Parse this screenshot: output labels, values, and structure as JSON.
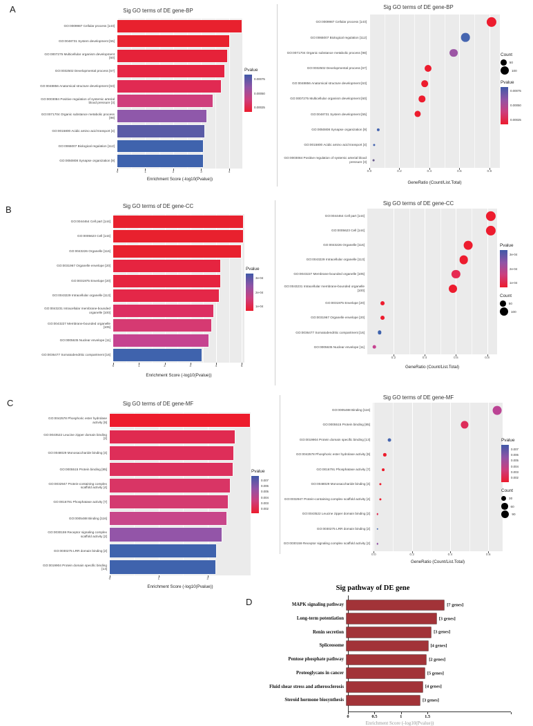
{
  "panel_letters": [
    "A",
    "B",
    "C",
    "D"
  ],
  "pvalue_gradient": [
    "#4059A7",
    "#8F54A6",
    "#CC3F7D",
    "#EC1C2E"
  ],
  "panel_bg": "#EBEBEB",
  "chart_data": [
    {
      "id": "bp-bar",
      "type": "bar",
      "panel": "A",
      "title": "Sig GO terms of DE gene-BP",
      "xlabel": "Enrichment Score (-log10(Pvalue))",
      "xmin": 0,
      "xmax": 4.47,
      "ticks": [
        {
          "v": 0,
          "label": "0"
        },
        {
          "v": 1,
          "label": "1"
        },
        {
          "v": 2,
          "label": "2"
        },
        {
          "v": 3,
          "label": "3"
        },
        {
          "v": 4,
          "label": "4"
        }
      ],
      "legend_order": [
        "pvalue"
      ],
      "legend_pvalue": {
        "title": "Pvalue",
        "ticks": [
          "0.00075",
          "0.00050",
          "0.00025"
        ]
      },
      "items": [
        {
          "label": "GO:0009987 Cellular process [143]",
          "value": 4.45,
          "color": "#E8212E"
        },
        {
          "label": "GO:0048731 System development [55]",
          "value": 4.0,
          "color": "#E8212E"
        },
        {
          "label": "GO:0007275 Multicellular organism development [60]",
          "value": 3.93,
          "color": "#E62239"
        },
        {
          "label": "GO:0032502 Developmental process [67]",
          "value": 3.83,
          "color": "#E52443"
        },
        {
          "label": "GO:0048856 Anatomical structure development [63]",
          "value": 3.71,
          "color": "#E12A52"
        },
        {
          "label": "GO:0003084 Positive regulation of systemic arterial blood pressure [3]",
          "value": 3.42,
          "color": "#CF3E7C"
        },
        {
          "label": "GO:0071704 Organic substance metabolic process [98]",
          "value": 3.19,
          "color": "#8F58AA"
        },
        {
          "label": "GO:0015800 Acidic amino acid transport [4]",
          "value": 3.12,
          "color": "#5A5BA6"
        },
        {
          "label": "GO:0065007 Biological regulation [112]",
          "value": 3.05,
          "color": "#3F63AD"
        },
        {
          "label": "GO:0050808 Synapse organization [9]",
          "value": 3.05,
          "color": "#3F63AD"
        }
      ]
    },
    {
      "id": "bp-dot",
      "type": "scatter",
      "panel": "A",
      "title": "Sig GO terms of DE gene-BP",
      "xlabel": "GeneRatio (Count/List.Total)",
      "xmin": 0,
      "xmax": 0.87,
      "ticks": [
        {
          "v": 0,
          "label": "0.0"
        },
        {
          "v": 0.2,
          "label": "0.2"
        },
        {
          "v": 0.4,
          "label": "0.4"
        },
        {
          "v": 0.6,
          "label": "0.6"
        },
        {
          "v": 0.8,
          "label": "0.8"
        }
      ],
      "legend_order": [
        "count",
        "pvalue"
      ],
      "legend_count": {
        "title": "Count",
        "items": [
          {
            "label": "50",
            "count": 50
          },
          {
            "label": "100",
            "count": 100
          }
        ]
      },
      "legend_pvalue": {
        "title": "Pvalue",
        "ticks": [
          "0.00075",
          "0.00050",
          "0.00025"
        ]
      },
      "items": [
        {
          "label": "GO:0009987 Cellular process [143]",
          "value": 0.815,
          "count": 143,
          "color": "#ED1C2E"
        },
        {
          "label": "GO:0065007 Biological regulation [112]",
          "value": 0.64,
          "count": 112,
          "color": "#4565B0"
        },
        {
          "label": "GO:0071704 Organic substance metabolic process [98]",
          "value": 0.56,
          "count": 98,
          "color": "#9C56A5"
        },
        {
          "label": "GO:0032502 Developmental process [67]",
          "value": 0.39,
          "count": 67,
          "color": "#ED1C2E"
        },
        {
          "label": "GO:0048856 Anatomical structure development [63]",
          "value": 0.37,
          "count": 63,
          "color": "#ED1C2E"
        },
        {
          "label": "GO:0007275 Multicellular organism development [60]",
          "value": 0.35,
          "count": 60,
          "color": "#ED1C2E"
        },
        {
          "label": "GO:0048731 System development [55]",
          "value": 0.32,
          "count": 55,
          "color": "#ED1C2E"
        },
        {
          "label": "GO:0050808 Synapse organization [9]",
          "value": 0.06,
          "count": 9,
          "color": "#4565B0"
        },
        {
          "label": "GO:0015800 Acidic amino acid transport [4]",
          "value": 0.033,
          "count": 4,
          "color": "#4565B0"
        },
        {
          "label": "GO:0003084 Positive regulation of systemic arterial blood pressure [3]",
          "value": 0.028,
          "count": 3,
          "color": "#6A5B8E"
        }
      ]
    },
    {
      "id": "cc-bar",
      "type": "bar",
      "panel": "B",
      "title": "Sig GO terms of DE gene-CC",
      "xlabel": "Enrichment Score (-log10(Pvalue))",
      "xmin": 0,
      "xmax": 5.1,
      "ticks": [
        {
          "v": 0,
          "label": "0"
        },
        {
          "v": 1,
          "label": "1"
        },
        {
          "v": 2,
          "label": "2"
        },
        {
          "v": 3,
          "label": "3"
        },
        {
          "v": 4,
          "label": "4"
        },
        {
          "v": 5,
          "label": "5"
        }
      ],
      "legend_order": [
        "pvalue"
      ],
      "legend_pvalue": {
        "title": "Pvalue",
        "ticks": [
          "3e-04",
          "2e-04",
          "1e-04"
        ]
      },
      "items": [
        {
          "label": "GO:0044464 Cell part [144]",
          "value": 5.05,
          "color": "#E8212E"
        },
        {
          "label": "GO:0005623 Cell [144]",
          "value": 5.04,
          "color": "#E8212E"
        },
        {
          "label": "GO:0043226 Organelle [116]",
          "value": 4.97,
          "color": "#E8212E"
        },
        {
          "label": "GO:0031967 Organelle envelope [20]",
          "value": 4.16,
          "color": "#E62440"
        },
        {
          "label": "GO:0031975 Envelope [20]",
          "value": 4.15,
          "color": "#E62440"
        },
        {
          "label": "GO:0043229 Intracellular organelle [113]",
          "value": 4.1,
          "color": "#E42748"
        },
        {
          "label": "GO:0043231 Intracellular membrane-bounded organelle [100]",
          "value": 3.9,
          "color": "#DD2F62"
        },
        {
          "label": "GO:0043227 Membrane-bounded organelle [105]",
          "value": 3.81,
          "color": "#D63A72"
        },
        {
          "label": "GO:0005635 Nuclear envelope [11]",
          "value": 3.7,
          "color": "#C64390"
        },
        {
          "label": "GO:0036477 Somatodendritic compartment [16]",
          "value": 3.43,
          "color": "#3F63AD"
        }
      ]
    },
    {
      "id": "cc-dot",
      "type": "scatter",
      "panel": "B",
      "title": "Sig GO terms of DE gene-CC",
      "xlabel": "GeneRatio (Count/List.Total)",
      "xmin": 0.032,
      "xmax": 0.864,
      "ticks": [
        {
          "v": 0.2,
          "label": "0.2"
        },
        {
          "v": 0.4,
          "label": "0.4"
        },
        {
          "v": 0.6,
          "label": "0.6"
        },
        {
          "v": 0.8,
          "label": "0.8"
        }
      ],
      "legend_order": [
        "pvalue",
        "count"
      ],
      "legend_count": {
        "title": "Count",
        "items": [
          {
            "label": "50",
            "count": 50
          },
          {
            "label": "100",
            "count": 100
          }
        ]
      },
      "legend_pvalue": {
        "title": "Pvalue",
        "ticks": [
          "3e-04",
          "2e-04",
          "1e-04"
        ]
      },
      "items": [
        {
          "label": "GO:0044464 Cell part [144]",
          "value": 0.824,
          "count": 144,
          "color": "#ED1C2E"
        },
        {
          "label": "GO:0005623 Cell [144]",
          "value": 0.824,
          "count": 144,
          "color": "#ED1C2E"
        },
        {
          "label": "GO:0043226 Organelle [116]",
          "value": 0.68,
          "count": 116,
          "color": "#ED1C2E"
        },
        {
          "label": "GO:0043229 Intracellular organelle [113]",
          "value": 0.65,
          "count": 113,
          "color": "#ED1C2E"
        },
        {
          "label": "GO:0043227 Membrane-bounded organelle [105]",
          "value": 0.6,
          "count": 105,
          "color": "#E62A52"
        },
        {
          "label": "GO:0043231 Intracellular membrane-bounded organelle [100]",
          "value": 0.58,
          "count": 100,
          "color": "#ED1C2E"
        },
        {
          "label": "GO:0031975 Envelope [20]",
          "value": 0.13,
          "count": 20,
          "color": "#ED1C2E"
        },
        {
          "label": "GO:0031967 Organelle envelope [20]",
          "value": 0.13,
          "count": 20,
          "color": "#ED1C2E"
        },
        {
          "label": "GO:0036477 Somatodendritic compartment [16]",
          "value": 0.11,
          "count": 16,
          "color": "#3F63AD"
        },
        {
          "label": "GO:0005635 Nuclear envelope [11]",
          "value": 0.076,
          "count": 11,
          "color": "#C64390"
        }
      ]
    },
    {
      "id": "mf-bar",
      "type": "bar",
      "panel": "C",
      "title": "Sig GO terms of DE gene-MF",
      "xlabel": "Enrichment Score (-log10(Pvalue))",
      "xmin": 0,
      "xmax": 2.88,
      "ticks": [
        {
          "v": 0,
          "label": "0"
        },
        {
          "v": 1,
          "label": "1"
        },
        {
          "v": 2,
          "label": "2"
        }
      ],
      "legend_order": [
        "pvalue"
      ],
      "legend_pvalue": {
        "title": "Pvalue",
        "ticks": [
          "0.007",
          "0.006",
          "0.005",
          "0.004",
          "0.003",
          "0.002"
        ]
      },
      "items": [
        {
          "label": "GO:0042578 Phosphoric ester hydrolase activity [9]",
          "value": 2.87,
          "color": "#ED1C2C"
        },
        {
          "label": "GO:0043522 Leucine zipper domain binding [2]",
          "value": 2.56,
          "color": "#E02A50"
        },
        {
          "label": "GO:0048029 Monosaccharide binding [4]",
          "value": 2.52,
          "color": "#DE2E59"
        },
        {
          "label": "GO:0005515 Protein binding [85]",
          "value": 2.51,
          "color": "#DC315E"
        },
        {
          "label": "GO:0032947 Protein-containing complex scaffold activity [4]",
          "value": 2.46,
          "color": "#D93565"
        },
        {
          "label": "GO:0016791 Phosphatase activity [7]",
          "value": 2.42,
          "color": "#D43A70"
        },
        {
          "label": "GO:0005488 Binding [116]",
          "value": 2.38,
          "color": "#C8468A"
        },
        {
          "label": "GO:0030159 Receptor signaling complex scaffold activity [2]",
          "value": 2.29,
          "color": "#9355A8"
        },
        {
          "label": "GO:0030275 LRR domain binding [2]",
          "value": 2.17,
          "color": "#3F63AD"
        },
        {
          "label": "GO:0019904 Protein domain specific binding [13]",
          "value": 2.16,
          "color": "#3F63AD"
        }
      ]
    },
    {
      "id": "mf-dot",
      "type": "scatter",
      "panel": "C",
      "title": "Sig GO terms of DE gene-MF",
      "xlabel": "GeneRatio (Count/List.Total)",
      "xmin": -0.005,
      "xmax": 0.675,
      "ticks": [
        {
          "v": 0,
          "label": "0.0"
        },
        {
          "v": 0.2,
          "label": "0.2"
        },
        {
          "v": 0.4,
          "label": "0.4"
        },
        {
          "v": 0.6,
          "label": "0.6"
        }
      ],
      "legend_order": [
        "pvalue",
        "count"
      ],
      "legend_count": {
        "title": "Count",
        "items": [
          {
            "label": "30",
            "count": 30
          },
          {
            "label": "60",
            "count": 60
          },
          {
            "label": "90",
            "count": 90
          }
        ]
      },
      "legend_pvalue": {
        "title": "Pvalue",
        "ticks": [
          "0.007",
          "0.006",
          "0.005",
          "0.004",
          "0.003",
          "0.002"
        ]
      },
      "items": [
        {
          "label": "GO:0005488 Binding [116]",
          "value": 0.645,
          "count": 116,
          "color": "#BB4394"
        },
        {
          "label": "GO:0005515 Protein binding [85]",
          "value": 0.475,
          "count": 85,
          "color": "#DD2D5A"
        },
        {
          "label": "GO:0019904 Protein domain specific binding [13]",
          "value": 0.083,
          "count": 13,
          "color": "#4565B0"
        },
        {
          "label": "GO:0042578 Phosphoric ester hydrolase activity [9]",
          "value": 0.058,
          "count": 9,
          "color": "#ED1C2C"
        },
        {
          "label": "GO:0016791 Phosphatase activity [7]",
          "value": 0.05,
          "count": 7,
          "color": "#ED1C2C"
        },
        {
          "label": "GO:0048029 Monosaccharide binding [4]",
          "value": 0.033,
          "count": 4,
          "color": "#ED1C2C"
        },
        {
          "label": "GO:0032947 Protein-containing complex scaffold activity [4]",
          "value": 0.033,
          "count": 4,
          "color": "#ED1C2C"
        },
        {
          "label": "GO:0043522 Leucine zipper domain binding [2]",
          "value": 0.02,
          "count": 2,
          "color": "#E02A50"
        },
        {
          "label": "GO:0030275 LRR domain binding [2]",
          "value": 0.02,
          "count": 2,
          "color": "#3F63AD"
        },
        {
          "label": "GO:0030159 Receptor signaling complex scaffold activity [2]",
          "value": 0.02,
          "count": 2,
          "color": "#9355A8"
        }
      ]
    },
    {
      "id": "pathway",
      "type": "bar",
      "panel": "D",
      "title": "Sig pathway of DE gene",
      "xlabel": "Enrichment Score (-log10(Pvalue))",
      "xmin": 0,
      "xmax": 1.9,
      "ticks": [
        {
          "v": 0,
          "label": "0"
        },
        {
          "v": 0.5,
          "label": "0.5"
        },
        {
          "v": 1,
          "label": "1"
        },
        {
          "v": 1.5,
          "label": "1.5"
        }
      ],
      "bar_color": "#A23338",
      "items": [
        {
          "label": "MAPK signaling pathway",
          "value": 1.84,
          "genes": "[7 genes]"
        },
        {
          "label": "Long-term potentiation",
          "value": 1.69,
          "genes": "[3 genes]"
        },
        {
          "label": "Renin secretion",
          "value": 1.59,
          "genes": "[3 genes]"
        },
        {
          "label": "Spliceosome",
          "value": 1.53,
          "genes": "[4 genes]"
        },
        {
          "label": "Pentose phosphate pathway",
          "value": 1.5,
          "genes": "[2 genes]"
        },
        {
          "label": "Proteoglycans in cancer",
          "value": 1.47,
          "genes": "[5 genes]"
        },
        {
          "label": "Fluid shear stress and atherosclerosis",
          "value": 1.43,
          "genes": "[4 genes]"
        },
        {
          "label": "Steroid hormone biosynthesis",
          "value": 1.38,
          "genes": "[3 genes]"
        }
      ]
    }
  ]
}
